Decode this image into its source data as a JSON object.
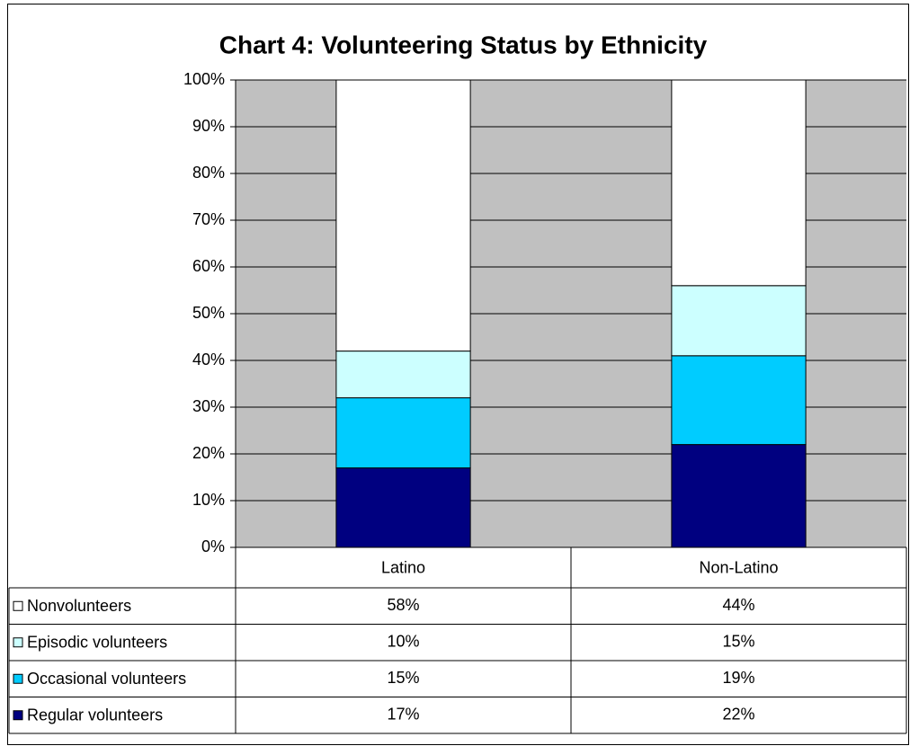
{
  "chart_data": {
    "type": "stacked_bar",
    "title": "Chart 4: Volunteering Status by Ethnicity",
    "categories": [
      "Latino",
      "Non-Latino"
    ],
    "series": [
      {
        "name": "Regular volunteers",
        "color": "#000080",
        "values": [
          17,
          22
        ],
        "value_labels": [
          "17%",
          "22%"
        ]
      },
      {
        "name": "Occasional volunteers",
        "color": "#00CCFF",
        "values": [
          15,
          19
        ],
        "value_labels": [
          "15%",
          "19%"
        ]
      },
      {
        "name": "Episodic volunteers",
        "color": "#CCFFFF",
        "values": [
          10,
          15
        ],
        "value_labels": [
          "10%",
          "15%"
        ]
      },
      {
        "name": "Nonvolunteers",
        "color": "#FFFFFF",
        "values": [
          58,
          44
        ],
        "value_labels": [
          "58%",
          "44%"
        ]
      }
    ],
    "ylim": [
      0,
      100
    ],
    "yticks": [
      {
        "value": 0,
        "label": "0%"
      },
      {
        "value": 10,
        "label": "10%"
      },
      {
        "value": 20,
        "label": "20%"
      },
      {
        "value": 30,
        "label": "30%"
      },
      {
        "value": 40,
        "label": "40%"
      },
      {
        "value": 50,
        "label": "50%"
      },
      {
        "value": 60,
        "label": "60%"
      },
      {
        "value": 70,
        "label": "70%"
      },
      {
        "value": 80,
        "label": "80%"
      },
      {
        "value": 90,
        "label": "90%"
      },
      {
        "value": 100,
        "label": "100%"
      }
    ],
    "grid": true,
    "plot_background": "#C0C0C0"
  }
}
